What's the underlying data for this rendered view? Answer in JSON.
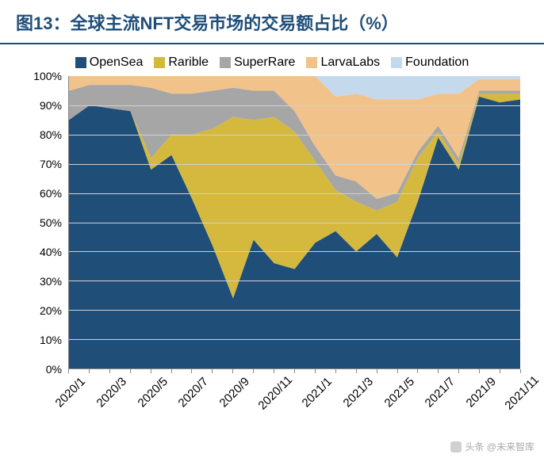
{
  "title": "图13：全球主流NFT交易市场的交易额占比（%）",
  "watermark": "头条 @未来智库",
  "chart": {
    "type": "stacked-area",
    "background_color": "#ffffff",
    "grid_color": "#d0d0d0",
    "axis_color": "#888888",
    "title_color": "#1f4e79",
    "title_fontsize": 22,
    "label_fontsize": 15,
    "ylabel_suffix": "%",
    "ylim": [
      0,
      100
    ],
    "ytick_step": 10,
    "yticks": [
      0,
      10,
      20,
      30,
      40,
      50,
      60,
      70,
      80,
      90,
      100
    ],
    "xticks": [
      "2020/1",
      "2020/3",
      "2020/5",
      "2020/7",
      "2020/9",
      "2020/11",
      "2021/1",
      "2021/3",
      "2021/5",
      "2021/7",
      "2021/9",
      "2021/11"
    ],
    "categories": [
      "2020/1",
      "2020/2",
      "2020/3",
      "2020/4",
      "2020/5",
      "2020/6",
      "2020/7",
      "2020/8",
      "2020/9",
      "2020/10",
      "2020/11",
      "2020/12",
      "2021/1",
      "2021/2",
      "2021/3",
      "2021/4",
      "2021/5",
      "2021/6",
      "2021/7",
      "2021/8",
      "2021/9",
      "2021/10",
      "2021/11"
    ],
    "series": [
      {
        "name": "OpenSea",
        "color": "#1f4e79",
        "values": [
          85,
          90,
          89,
          88,
          68,
          73,
          58,
          42,
          24,
          44,
          36,
          34,
          43,
          47,
          40,
          46,
          38,
          57,
          79,
          68,
          93,
          91,
          92
        ]
      },
      {
        "name": "Rarible",
        "color": "#d4b93e",
        "values": [
          0,
          0,
          0,
          0,
          4,
          7,
          22,
          40,
          62,
          41,
          50,
          47,
          28,
          14,
          17,
          8,
          19,
          15,
          2,
          2,
          1,
          3,
          2
        ]
      },
      {
        "name": "SuperRare",
        "color": "#a6a6a6",
        "values": [
          10,
          7,
          8,
          9,
          24,
          14,
          14,
          13,
          10,
          10,
          9,
          7,
          5,
          5,
          7,
          4,
          3,
          2,
          2,
          2,
          1,
          1,
          1
        ]
      },
      {
        "name": "LarvaLabs",
        "color": "#f2c28b",
        "values": [
          5,
          3,
          3,
          3,
          4,
          6,
          6,
          5,
          4,
          5,
          5,
          12,
          24,
          27,
          30,
          34,
          32,
          18,
          11,
          22,
          4,
          4,
          4
        ]
      },
      {
        "name": "Foundation",
        "color": "#c5d9ed",
        "values": [
          0,
          0,
          0,
          0,
          0,
          0,
          0,
          0,
          0,
          0,
          0,
          0,
          0,
          7,
          6,
          8,
          8,
          8,
          6,
          6,
          1,
          1,
          1
        ]
      }
    ]
  },
  "legend_labels": {
    "s0": "OpenSea",
    "s1": "Rarible",
    "s2": "SuperRare",
    "s3": "LarvaLabs",
    "s4": "Foundation"
  }
}
